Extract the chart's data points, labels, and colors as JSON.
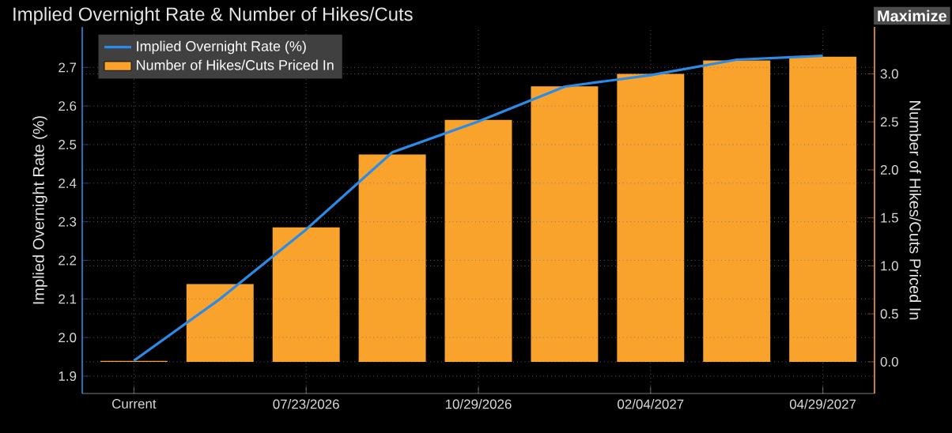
{
  "chart_data": {
    "type": "line",
    "title": "Implied Overnight Rate & Number of Hikes/Cuts",
    "ylabel": "Implied Overnight Rate (%)",
    "y2label": "Number of Hikes/Cuts Priced In",
    "annotations": [
      "Maximize"
    ],
    "categories": [
      "Current",
      null,
      "07/23/2026",
      null,
      "10/29/2026",
      null,
      "02/04/2027",
      null,
      "04/29/2027"
    ],
    "series": [
      {
        "name": "Implied Overnight Rate (%)",
        "color": "#2b8be8",
        "values": [
          1.94,
          2.1,
          2.28,
          2.48,
          2.56,
          2.65,
          2.68,
          2.72,
          2.73
        ]
      },
      {
        "name": "Number of Hikes/Cuts Priced In",
        "type": "bar",
        "axis": "y2",
        "color": "#f9a22c",
        "values": [
          0.01,
          0.81,
          1.4,
          2.16,
          2.52,
          2.87,
          3.0,
          3.14,
          3.18
        ]
      }
    ],
    "ylim": [
      1.855,
      2.805
    ],
    "yticks": [
      1.9,
      {
        "value": 2,
        "label": "2.0"
      },
      2.1,
      2.2,
      2.3,
      2.4,
      2.5,
      2.6,
      2.7
    ],
    "y2lim": [
      -0.33,
      3.49
    ],
    "y2ticks": [
      {
        "value": 0,
        "label": "0.0"
      },
      0.5,
      {
        "value": 1,
        "label": "1.0"
      },
      1.5,
      {
        "value": 2,
        "label": "2.0"
      },
      2.5,
      {
        "value": 3,
        "label": "3.0"
      }
    ],
    "grid": true,
    "legend": "top left"
  }
}
